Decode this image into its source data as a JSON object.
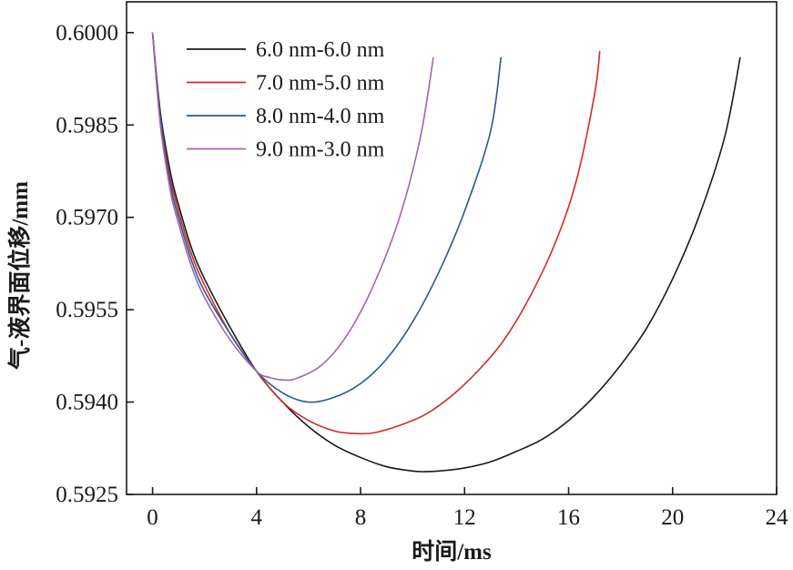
{
  "chart_data": {
    "type": "line",
    "xlabel": "时间/ms",
    "ylabel": "气-液界面位移/mm",
    "xlim": [
      -1,
      24
    ],
    "ylim": [
      0.5925,
      0.6005
    ],
    "xticks": [
      0,
      4,
      8,
      12,
      16,
      20,
      24
    ],
    "yticks": [
      0.5925,
      0.594,
      0.5955,
      0.597,
      0.5985,
      0.6
    ],
    "xtick_labels": [
      "0",
      "4",
      "8",
      "12",
      "16",
      "20",
      "24"
    ],
    "ytick_labels": [
      "0.5925",
      "0.5940",
      "0.5955",
      "0.5970",
      "0.5985",
      "0.6000"
    ],
    "grid": false,
    "legend_position": "top-left",
    "series": [
      {
        "name": "6.0 nm-6.0 nm",
        "color": "#1a1a1a",
        "points": [
          [
            0,
            0.6
          ],
          [
            0.3,
            0.5987
          ],
          [
            0.7,
            0.5977
          ],
          [
            1.0,
            0.5972
          ],
          [
            1.5,
            0.5965
          ],
          [
            2,
            0.596
          ],
          [
            3,
            0.5952
          ],
          [
            4,
            0.5945
          ],
          [
            5,
            0.594
          ],
          [
            6,
            0.5936
          ],
          [
            7,
            0.5933
          ],
          [
            8,
            0.5931
          ],
          [
            9,
            0.59295
          ],
          [
            10,
            0.59288
          ],
          [
            10.5,
            0.59287
          ],
          [
            11,
            0.59288
          ],
          [
            12,
            0.59293
          ],
          [
            13,
            0.59303
          ],
          [
            14,
            0.5932
          ],
          [
            15,
            0.5934
          ],
          [
            16,
            0.5937
          ],
          [
            17,
            0.5941
          ],
          [
            18,
            0.5946
          ],
          [
            19,
            0.5952
          ],
          [
            20,
            0.596
          ],
          [
            21,
            0.597
          ],
          [
            22,
            0.5983
          ],
          [
            22.6,
            0.5996
          ]
        ]
      },
      {
        "name": "7.0 nm-5.0 nm",
        "color": "#d42a2a",
        "points": [
          [
            0,
            0.6
          ],
          [
            0.3,
            0.5986
          ],
          [
            0.7,
            0.5976
          ],
          [
            1.0,
            0.5971
          ],
          [
            1.5,
            0.5964
          ],
          [
            2,
            0.5959
          ],
          [
            3,
            0.5951
          ],
          [
            4,
            0.5945
          ],
          [
            5,
            0.594
          ],
          [
            6,
            0.5937
          ],
          [
            7,
            0.59353
          ],
          [
            7.8,
            0.59349
          ],
          [
            8.5,
            0.5935
          ],
          [
            9.5,
            0.59362
          ],
          [
            10.5,
            0.5938
          ],
          [
            11.5,
            0.5941
          ],
          [
            12.5,
            0.5945
          ],
          [
            13.5,
            0.595
          ],
          [
            14.5,
            0.5957
          ],
          [
            15.5,
            0.5966
          ],
          [
            16.3,
            0.5976
          ],
          [
            17.0,
            0.599
          ],
          [
            17.2,
            0.5997
          ]
        ]
      },
      {
        "name": "8.0 nm-4.0 nm",
        "color": "#2d5a8c",
        "points": [
          [
            0,
            0.6
          ],
          [
            0.3,
            0.5986
          ],
          [
            0.7,
            0.5975
          ],
          [
            1.0,
            0.597
          ],
          [
            1.5,
            0.5963
          ],
          [
            2,
            0.5958
          ],
          [
            3,
            0.5951
          ],
          [
            4,
            0.5945
          ],
          [
            5,
            0.59415
          ],
          [
            6,
            0.594
          ],
          [
            7,
            0.59408
          ],
          [
            8,
            0.5943
          ],
          [
            9,
            0.5947
          ],
          [
            10,
            0.5953
          ],
          [
            11,
            0.5961
          ],
          [
            12,
            0.5971
          ],
          [
            13,
            0.5984
          ],
          [
            13.4,
            0.5996
          ]
        ]
      },
      {
        "name": "9.0 nm-3.0 nm",
        "color": "#a066b0",
        "points": [
          [
            0,
            0.6
          ],
          [
            0.3,
            0.5985
          ],
          [
            0.7,
            0.5974
          ],
          [
            1.0,
            0.5969
          ],
          [
            1.5,
            0.5962
          ],
          [
            2,
            0.5957
          ],
          [
            3,
            0.595
          ],
          [
            4,
            0.5945
          ],
          [
            4.5,
            0.5944
          ],
          [
            5,
            0.59436
          ],
          [
            5.5,
            0.59438
          ],
          [
            6.5,
            0.5946
          ],
          [
            7.5,
            0.5951
          ],
          [
            8.5,
            0.5959
          ],
          [
            9.5,
            0.597
          ],
          [
            10.3,
            0.5983
          ],
          [
            10.8,
            0.5996
          ]
        ]
      }
    ]
  }
}
